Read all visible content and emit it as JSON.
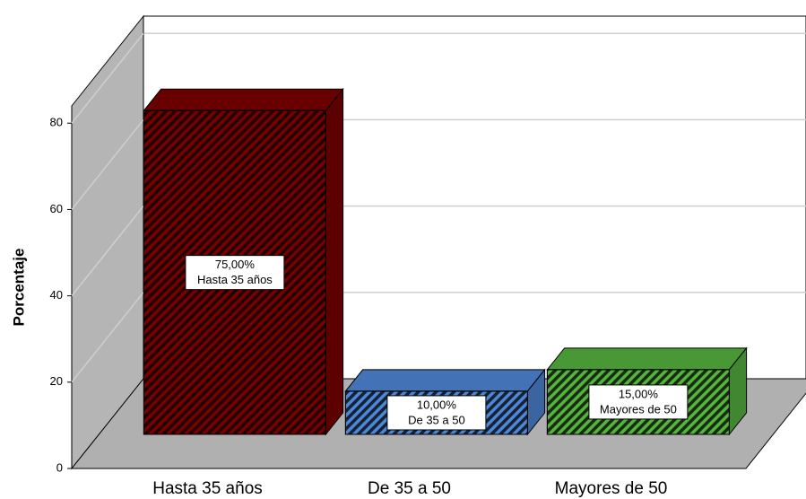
{
  "chart_data": {
    "type": "bar3d",
    "y_label": "Porcentaje",
    "categories": [
      "Hasta 35 años",
      "De 35 a 50",
      "Mayores de 50"
    ],
    "values": [
      75,
      10,
      15
    ],
    "value_labels": [
      "75,00%",
      "10,00%",
      "15,00%"
    ],
    "colors": [
      "#7a0000",
      "#4f86d6",
      "#56b340"
    ],
    "ylim": [
      0,
      84
    ],
    "yticks": [
      0,
      20,
      40,
      60,
      80
    ],
    "grid": true
  }
}
